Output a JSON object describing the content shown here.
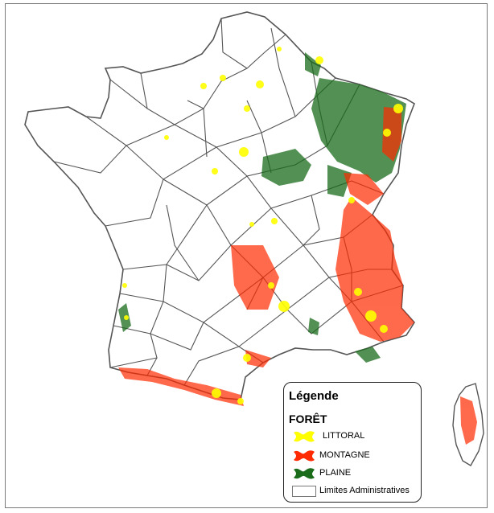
{
  "legend": {
    "title": "Légende",
    "subtitle": "FORÊT",
    "items": [
      {
        "label": "LITTORAL",
        "color": "#ffff00"
      },
      {
        "label": "MONTAGNE",
        "color": "#ff2a00"
      },
      {
        "label": "PLAINE",
        "color": "#1a6b1a"
      }
    ],
    "boundary_label": "Limites Administratives"
  },
  "colors": {
    "boundary": "#555555",
    "littoral": "#ffff00",
    "montagne": "#ff2a00",
    "plaine": "#1a6b1a"
  }
}
